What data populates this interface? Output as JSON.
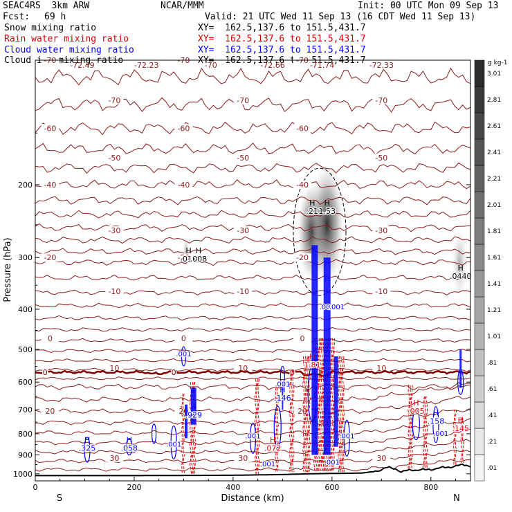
{
  "header": {
    "model": "SEAC4RS  3km ARW",
    "center": "NCAR/MMM",
    "init": "Init: 00 UTC Mon 09 Sep 13",
    "fcst_label": "Fcst:",
    "fcst_value": "69 h",
    "valid": "Valid: 21 UTC Wed 11 Sep 13 (16 CDT Wed 11 Sep 13)"
  },
  "fields": [
    {
      "name": "Snow mixing ratio",
      "xy": "XY=  162.5,137.6 to 151.5,431.7",
      "color": "#000000"
    },
    {
      "name": "Rain water mixing ratio",
      "xy": "XY=  162.5,137.6 to 151.5,431.7",
      "color": "#d40000"
    },
    {
      "name": "Cloud water mixing ratio",
      "xy": "XY=  162.5,137.6 to 151.5,431.7",
      "color": "#0000ff"
    },
    {
      "name": "Cloud ice mixing ratio",
      "xy": "XY=  162.5,137.6 to 151.5,431.7",
      "color": "#000000"
    }
  ],
  "colors": {
    "temperature_contour": "#8b1a1a",
    "freezing_level": "#7a0000",
    "rain": "#e00000",
    "cloud_water": "#0000ff",
    "terrain": "#000000"
  },
  "chart_data": {
    "type": "cross-section",
    "xlabel": "Distance (km)",
    "ylabel": "Pressure (hPa)",
    "xlim": [
      0,
      880
    ],
    "ylim": [
      1040,
      100
    ],
    "x_ticks": [
      0,
      200,
      400,
      600,
      800
    ],
    "y_ticks": [
      200,
      300,
      400,
      500,
      600,
      700,
      800,
      900,
      1000
    ],
    "x_end_labels": {
      "left": "S",
      "right": "N"
    },
    "temperature_contours": [
      {
        "label": "-70",
        "p": 100
      },
      {
        "label": "-70",
        "p": 125
      },
      {
        "label": "-60",
        "p": 146
      },
      {
        "label": "-50",
        "p": 172
      },
      {
        "label": "-40",
        "p": 200
      },
      {
        "label": "-30",
        "p": 258
      },
      {
        "label": "-20",
        "p": 300
      },
      {
        "label": "-10",
        "p": 362
      },
      {
        "label": "0",
        "p": 470
      },
      {
        "label": "10",
        "p": 555
      },
      {
        "label": "20",
        "p": 705
      },
      {
        "label": "30",
        "p": 915
      }
    ],
    "freezing_level_hpa": 568,
    "tropopause_temps": [
      {
        "x": 95,
        "label": "-72.49"
      },
      {
        "x": 225,
        "label": "-72.23"
      },
      {
        "x": 355,
        "label": "-70"
      },
      {
        "x": 480,
        "label": "-72.66"
      },
      {
        "x": 580,
        "label": "-71.74"
      },
      {
        "x": 700,
        "label": "-72.33"
      }
    ],
    "terrain_surface_hpa": [
      [
        0,
        1010
      ],
      [
        100,
        1010
      ],
      [
        200,
        1010
      ],
      [
        300,
        1009
      ],
      [
        400,
        1008
      ],
      [
        500,
        1004
      ],
      [
        550,
        1000
      ],
      [
        600,
        998
      ],
      [
        660,
        996
      ],
      [
        690,
        985
      ],
      [
        710,
        966
      ],
      [
        730,
        972
      ],
      [
        740,
        990
      ],
      [
        760,
        978
      ],
      [
        790,
        978
      ],
      [
        820,
        968
      ],
      [
        850,
        958
      ],
      [
        870,
        950
      ],
      [
        880,
        958
      ]
    ],
    "snow_mixing_ratio_scale": {
      "unit": "g kg-1",
      "levels": [
        ".01",
        ".21",
        ".41",
        ".61",
        ".81",
        "1.01",
        "1.21",
        "1.41",
        "1.61",
        "1.81",
        "2.01",
        "2.21",
        "2.41",
        "2.61",
        "2.81",
        "3.01"
      ]
    },
    "snow_maxima": [
      {
        "x": 560,
        "p": 230,
        "label": ".21"
      },
      {
        "x": 590,
        "p": 230,
        "label": "1.53"
      }
    ],
    "ice_maxima": [
      {
        "x": 310,
        "p": 300,
        "label": ".017"
      },
      {
        "x": 330,
        "p": 300,
        "label": ".008"
      },
      {
        "x": 860,
        "p": 330,
        "label": ".0440"
      }
    ],
    "rain_maxima": [
      {
        "x": 770,
        "p": 700,
        "label": ".005"
      },
      {
        "x": 860,
        "p": 770,
        "label": ".145"
      },
      {
        "x": 480,
        "p": 860,
        "label": ".072"
      },
      {
        "x": 560,
        "p": 540,
        "label": "1.81"
      }
    ],
    "cloud_water_maxima": [
      {
        "x": 320,
        "p": 715,
        "label": ".929"
      },
      {
        "x": 500,
        "p": 650,
        "label": ".146"
      },
      {
        "x": 810,
        "p": 740,
        "label": ".158"
      },
      {
        "x": 105,
        "p": 860,
        "label": ".325"
      },
      {
        "x": 190,
        "p": 860,
        "label": ".058"
      }
    ],
    "small_value_labels": [
      {
        "x": 300,
        "p": 520,
        "label": ".001"
      },
      {
        "x": 590,
        "p": 400,
        "label": ".001"
      },
      {
        "x": 610,
        "p": 400,
        "label": ".001"
      },
      {
        "x": 500,
        "p": 615,
        "label": ".001"
      },
      {
        "x": 280,
        "p": 860,
        "label": ".001"
      },
      {
        "x": 440,
        "p": 820,
        "label": ".001"
      },
      {
        "x": 630,
        "p": 820,
        "label": ".001"
      },
      {
        "x": 470,
        "p": 960,
        "label": ".001"
      },
      {
        "x": 600,
        "p": 950,
        "label": ".001"
      },
      {
        "x": 820,
        "p": 810,
        "label": ".001"
      }
    ]
  }
}
